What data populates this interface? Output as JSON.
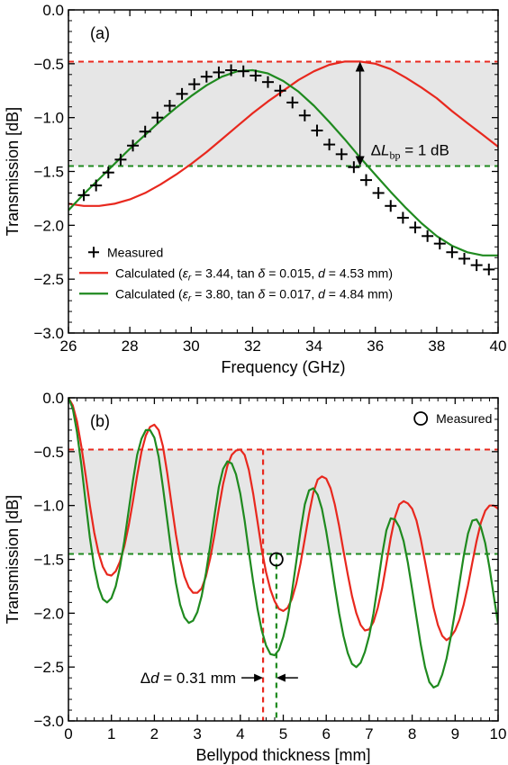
{
  "colors": {
    "red": "#e8281e",
    "green": "#1f8a1f",
    "shade": "#e6e6e6",
    "axis": "#000000"
  },
  "chart_data": [
    {
      "type": "line",
      "panel_label": "(a)",
      "xlabel": "Frequency (GHz)",
      "ylabel": "Transmission [dB]",
      "xlim": [
        26,
        40
      ],
      "ylim": [
        -3.0,
        0.0
      ],
      "xticks": [
        "26",
        "28",
        "30",
        "32",
        "34",
        "36",
        "38",
        "40"
      ],
      "yticks": [
        "0.0",
        "−0.5",
        "−1.0",
        "−1.5",
        "−2.0",
        "−2.5",
        "−3.0"
      ],
      "shaded_band": [
        -1.45,
        -0.48
      ],
      "ref_lines": [
        {
          "y": -0.48,
          "color": "red"
        },
        {
          "y": -1.45,
          "color": "green"
        }
      ],
      "annotation": {
        "prefix": "Δ",
        "var": "L",
        "sub": "bp",
        "suffix": " = 1 dB",
        "x": 35.5,
        "y_top": -0.48,
        "y_bottom": -1.45
      },
      "legend": {
        "measured": "Measured",
        "red": {
          "label_start": "Calculated (",
          "eps": "ε",
          "eps_sub": "r",
          "mid1": " = 3.44, tan",
          "delta": "δ",
          "mid2": " = 0.015, ",
          "d": "d",
          "end": " = 4.53 mm)"
        },
        "green": {
          "label_start": "Calculated (",
          "eps": "ε",
          "eps_sub": "r",
          "mid1": " = 3.80, tan",
          "delta": "δ",
          "mid2": " = 0.017, ",
          "d": "d",
          "end": " = 4.84 mm)"
        }
      },
      "series": [
        {
          "name": "Measured",
          "marker": "+",
          "x": [
            26.5,
            26.9,
            27.3,
            27.7,
            28.1,
            28.5,
            28.9,
            29.3,
            29.7,
            30.1,
            30.5,
            30.9,
            31.3,
            31.7,
            32.1,
            32.5,
            32.9,
            33.3,
            33.7,
            34.1,
            34.5,
            34.9,
            35.3,
            35.7,
            36.1,
            36.5,
            36.9,
            37.3,
            37.7,
            38.1,
            38.5,
            38.9,
            39.3,
            39.7
          ],
          "y": [
            -1.72,
            -1.63,
            -1.51,
            -1.39,
            -1.26,
            -1.13,
            -1.0,
            -0.89,
            -0.78,
            -0.69,
            -0.62,
            -0.58,
            -0.56,
            -0.57,
            -0.61,
            -0.67,
            -0.75,
            -0.86,
            -0.98,
            -1.12,
            -1.25,
            -1.34,
            -1.46,
            -1.58,
            -1.7,
            -1.82,
            -1.93,
            -2.02,
            -2.1,
            -2.17,
            -2.25,
            -2.31,
            -2.37,
            -2.41
          ]
        },
        {
          "name": "Calculated (εr = 3.44, tan δ = 0.015, d = 4.53 mm)",
          "color": "red",
          "x": [
            26,
            26.5,
            27,
            27.5,
            28,
            28.5,
            29,
            29.5,
            30,
            30.5,
            31,
            31.5,
            32,
            32.5,
            33,
            33.5,
            34,
            34.5,
            35,
            35.5,
            36,
            36.5,
            37,
            37.5,
            38,
            38.5,
            39,
            39.5,
            40
          ],
          "y": [
            -1.8,
            -1.82,
            -1.82,
            -1.8,
            -1.76,
            -1.7,
            -1.62,
            -1.53,
            -1.43,
            -1.32,
            -1.2,
            -1.08,
            -0.96,
            -0.85,
            -0.75,
            -0.65,
            -0.57,
            -0.51,
            -0.48,
            -0.48,
            -0.5,
            -0.55,
            -0.63,
            -0.72,
            -0.82,
            -0.94,
            -1.05,
            -1.16,
            -1.27
          ]
        },
        {
          "name": "Calculated (εr = 3.80, tan δ = 0.017, d = 4.84 mm)",
          "color": "green",
          "x": [
            26,
            26.5,
            27,
            27.5,
            28,
            28.5,
            29,
            29.5,
            30,
            30.5,
            31,
            31.5,
            32,
            32.5,
            33,
            33.5,
            34,
            34.5,
            35,
            35.5,
            36,
            36.5,
            37,
            37.5,
            38,
            38.5,
            39,
            39.5,
            40
          ],
          "y": [
            -1.86,
            -1.71,
            -1.57,
            -1.43,
            -1.29,
            -1.16,
            -1.03,
            -0.91,
            -0.8,
            -0.7,
            -0.62,
            -0.57,
            -0.56,
            -0.59,
            -0.66,
            -0.76,
            -0.89,
            -1.04,
            -1.2,
            -1.37,
            -1.53,
            -1.69,
            -1.84,
            -1.98,
            -2.1,
            -2.19,
            -2.25,
            -2.28,
            -2.28
          ]
        }
      ]
    },
    {
      "type": "line",
      "panel_label": "(b)",
      "xlabel": "Bellypod thickness [mm]",
      "ylabel": "Transmission [dB]",
      "xlim": [
        0,
        10
      ],
      "ylim": [
        -3.0,
        0.0
      ],
      "xticks": [
        "0",
        "1",
        "2",
        "3",
        "4",
        "5",
        "6",
        "7",
        "8",
        "9",
        "10"
      ],
      "yticks": [
        "0.0",
        "−0.5",
        "−1.0",
        "−1.5",
        "−2.0",
        "−2.5",
        "−3.0"
      ],
      "shaded_band": [
        -1.45,
        -0.48
      ],
      "ref_lines": [
        {
          "y": -0.48,
          "color": "red"
        },
        {
          "y": -1.45,
          "color": "green"
        }
      ],
      "vlines": [
        {
          "x": 4.53,
          "y_top": -0.48,
          "color": "red"
        },
        {
          "x": 4.84,
          "y_top": -1.45,
          "color": "green"
        }
      ],
      "annotation": {
        "prefix": "Δ",
        "var": "d",
        "suffix": " = 0.31 mm",
        "y": -2.6
      },
      "measured_point": {
        "x": 4.84,
        "y": -1.5
      },
      "legend": {
        "measured": "Measured"
      },
      "series": [
        {
          "name": "Measured",
          "marker": "o",
          "x": [
            4.84
          ],
          "y": [
            -1.5
          ]
        },
        {
          "name": "Calculated red",
          "color": "red",
          "x": [
            0,
            0.1,
            0.2,
            0.3,
            0.4,
            0.5,
            0.6,
            0.7,
            0.8,
            0.9,
            1.0,
            1.1,
            1.2,
            1.3,
            1.4,
            1.5,
            1.6,
            1.7,
            1.8,
            1.9,
            2.0,
            2.1,
            2.2,
            2.3,
            2.4,
            2.5,
            2.6,
            2.7,
            2.8,
            2.9,
            3.0,
            3.1,
            3.2,
            3.3,
            3.4,
            3.5,
            3.6,
            3.7,
            3.8,
            3.9,
            4.0,
            4.1,
            4.2,
            4.3,
            4.4,
            4.5,
            4.6,
            4.7,
            4.8,
            4.9,
            5.0,
            5.1,
            5.2,
            5.3,
            5.4,
            5.5,
            5.6,
            5.7,
            5.8,
            5.9,
            6.0,
            6.1,
            6.2,
            6.3,
            6.4,
            6.5,
            6.6,
            6.7,
            6.8,
            6.9,
            7.0,
            7.1,
            7.2,
            7.3,
            7.4,
            7.5,
            7.6,
            7.7,
            7.8,
            7.9,
            8.0,
            8.1,
            8.2,
            8.3,
            8.4,
            8.5,
            8.6,
            8.7,
            8.8,
            8.9,
            9.0,
            9.1,
            9.2,
            9.3,
            9.4,
            9.5,
            9.6,
            9.7,
            9.8,
            9.9,
            10.0
          ],
          "y": [
            0.0,
            -0.07,
            -0.22,
            -0.45,
            -0.72,
            -1.0,
            -1.25,
            -1.44,
            -1.57,
            -1.64,
            -1.65,
            -1.61,
            -1.52,
            -1.38,
            -1.19,
            -0.96,
            -0.72,
            -0.5,
            -0.35,
            -0.27,
            -0.25,
            -0.3,
            -0.45,
            -0.7,
            -0.99,
            -1.27,
            -1.5,
            -1.66,
            -1.76,
            -1.81,
            -1.81,
            -1.77,
            -1.66,
            -1.49,
            -1.27,
            -1.03,
            -0.8,
            -0.63,
            -0.53,
            -0.49,
            -0.48,
            -0.53,
            -0.67,
            -0.89,
            -1.15,
            -1.41,
            -1.62,
            -1.78,
            -1.89,
            -1.96,
            -1.98,
            -1.95,
            -1.87,
            -1.73,
            -1.54,
            -1.31,
            -1.08,
            -0.88,
            -0.76,
            -0.73,
            -0.75,
            -0.84,
            -0.99,
            -1.19,
            -1.42,
            -1.64,
            -1.84,
            -2.0,
            -2.11,
            -2.16,
            -2.15,
            -2.08,
            -1.95,
            -1.77,
            -1.54,
            -1.3,
            -1.11,
            -0.99,
            -0.96,
            -0.98,
            -1.03,
            -1.14,
            -1.31,
            -1.52,
            -1.74,
            -1.95,
            -2.11,
            -2.21,
            -2.25,
            -2.22,
            -2.16,
            -2.06,
            -1.92,
            -1.74,
            -1.53,
            -1.33,
            -1.16,
            -1.05,
            -1.0,
            -1.0,
            -1.03
          ]
        },
        {
          "name": "Calculated green",
          "color": "green",
          "x": [
            0,
            0.1,
            0.2,
            0.3,
            0.4,
            0.5,
            0.6,
            0.7,
            0.8,
            0.9,
            1.0,
            1.1,
            1.2,
            1.3,
            1.4,
            1.5,
            1.6,
            1.7,
            1.8,
            1.9,
            2.0,
            2.1,
            2.2,
            2.3,
            2.4,
            2.5,
            2.6,
            2.7,
            2.8,
            2.9,
            3.0,
            3.1,
            3.2,
            3.3,
            3.4,
            3.5,
            3.6,
            3.7,
            3.8,
            3.9,
            4.0,
            4.1,
            4.2,
            4.3,
            4.4,
            4.5,
            4.6,
            4.7,
            4.8,
            4.9,
            5.0,
            5.1,
            5.2,
            5.3,
            5.4,
            5.5,
            5.6,
            5.7,
            5.8,
            5.9,
            6.0,
            6.1,
            6.2,
            6.3,
            6.4,
            6.5,
            6.6,
            6.7,
            6.8,
            6.9,
            7.0,
            7.1,
            7.2,
            7.3,
            7.4,
            7.5,
            7.6,
            7.7,
            7.8,
            7.9,
            8.0,
            8.1,
            8.2,
            8.3,
            8.4,
            8.5,
            8.6,
            8.7,
            8.8,
            8.9,
            9.0,
            9.1,
            9.2,
            9.3,
            9.4,
            9.5,
            9.6,
            9.7,
            9.8,
            9.9,
            10.0
          ],
          "y": [
            0.0,
            -0.1,
            -0.32,
            -0.62,
            -0.97,
            -1.3,
            -1.57,
            -1.76,
            -1.87,
            -1.9,
            -1.86,
            -1.75,
            -1.57,
            -1.33,
            -1.05,
            -0.77,
            -0.53,
            -0.38,
            -0.3,
            -0.3,
            -0.37,
            -0.55,
            -0.83,
            -1.14,
            -1.45,
            -1.72,
            -1.92,
            -2.04,
            -2.09,
            -2.07,
            -1.99,
            -1.84,
            -1.63,
            -1.37,
            -1.09,
            -0.83,
            -0.66,
            -0.59,
            -0.61,
            -0.71,
            -0.89,
            -1.14,
            -1.43,
            -1.71,
            -1.96,
            -2.16,
            -2.3,
            -2.38,
            -2.39,
            -2.34,
            -2.22,
            -2.05,
            -1.81,
            -1.53,
            -1.24,
            -0.99,
            -0.86,
            -0.84,
            -0.9,
            -1.03,
            -1.24,
            -1.49,
            -1.75,
            -2.0,
            -2.21,
            -2.37,
            -2.47,
            -2.5,
            -2.46,
            -2.36,
            -2.21,
            -2.0,
            -1.74,
            -1.46,
            -1.23,
            -1.12,
            -1.13,
            -1.2,
            -1.33,
            -1.53,
            -1.78,
            -2.04,
            -2.29,
            -2.5,
            -2.64,
            -2.69,
            -2.67,
            -2.57,
            -2.42,
            -2.22,
            -1.98,
            -1.72,
            -1.47,
            -1.26,
            -1.14,
            -1.13,
            -1.2,
            -1.35,
            -1.58,
            -1.84,
            -2.1
          ]
        }
      ]
    }
  ]
}
